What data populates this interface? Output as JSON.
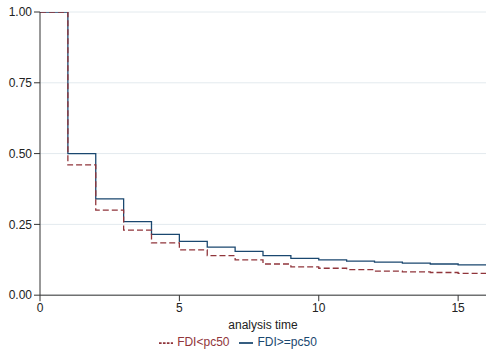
{
  "chart_data": {
    "type": "line",
    "x_label": "analysis time",
    "x": [
      0,
      1,
      2,
      3,
      4,
      5,
      6,
      7,
      8,
      9,
      10,
      11,
      12,
      13,
      14,
      15,
      16
    ],
    "series": [
      {
        "name": "FDI>=pc50",
        "color": "#1a476f",
        "line_style": "solid",
        "values": [
          1.0,
          0.5,
          0.34,
          0.26,
          0.215,
          0.19,
          0.17,
          0.155,
          0.14,
          0.13,
          0.125,
          0.12,
          0.117,
          0.113,
          0.11,
          0.107,
          0.107
        ]
      },
      {
        "name": "FDI<pc50",
        "color": "#90353b",
        "line_style": "dashed",
        "values": [
          1.0,
          0.46,
          0.3,
          0.23,
          0.185,
          0.16,
          0.14,
          0.125,
          0.11,
          0.1,
          0.095,
          0.09,
          0.085,
          0.082,
          0.08,
          0.077,
          0.077
        ]
      }
    ],
    "xlim": [
      0,
      16
    ],
    "xticks": [
      0,
      5,
      10,
      15
    ],
    "ylim": [
      0,
      1
    ],
    "yticks": [
      {
        "value": 0,
        "label": "0.00"
      },
      {
        "value": 0.25,
        "label": "0.25"
      },
      {
        "value": 0.5,
        "label": "0.50"
      },
      {
        "value": 0.75,
        "label": "0.75"
      },
      {
        "value": 1,
        "label": "1.00"
      }
    ],
    "grid": true,
    "legend": "bottom"
  }
}
